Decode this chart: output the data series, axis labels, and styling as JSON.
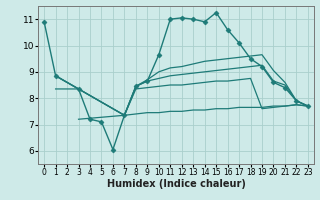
{
  "xlabel": "Humidex (Indice chaleur)",
  "bg_color": "#ceeae8",
  "grid_color": "#aacfcc",
  "line_color": "#1e7b78",
  "x_ticks": [
    0,
    1,
    2,
    3,
    4,
    5,
    6,
    7,
    8,
    9,
    10,
    11,
    12,
    13,
    14,
    15,
    16,
    17,
    18,
    19,
    20,
    21,
    22,
    23
  ],
  "ylim": [
    5.5,
    11.5
  ],
  "xlim": [
    -0.5,
    23.5
  ],
  "yticks": [
    6,
    7,
    8,
    9,
    10,
    11
  ],
  "series": [
    {
      "x": [
        0,
        1,
        3,
        4,
        5,
        6,
        7,
        8,
        9,
        10,
        11,
        12,
        13,
        14,
        15,
        16,
        17,
        18,
        19,
        20,
        21,
        22,
        23
      ],
      "y": [
        10.9,
        8.85,
        8.35,
        7.2,
        7.1,
        6.05,
        7.35,
        8.45,
        8.65,
        9.65,
        11.0,
        11.05,
        11.0,
        10.9,
        11.25,
        10.6,
        10.1,
        9.5,
        9.2,
        8.6,
        8.4,
        7.9,
        7.7
      ],
      "has_marker": true,
      "marker": "D",
      "markersize": 2.5,
      "linewidth": 1.0
    },
    {
      "x": [
        1,
        3,
        7,
        8,
        9,
        10,
        11,
        12,
        13,
        14,
        15,
        16,
        17,
        18,
        19,
        20,
        21,
        22,
        23
      ],
      "y": [
        8.85,
        8.35,
        7.35,
        8.45,
        8.7,
        9.0,
        9.15,
        9.2,
        9.3,
        9.4,
        9.45,
        9.5,
        9.55,
        9.6,
        9.65,
        9.05,
        8.6,
        7.9,
        7.7
      ],
      "has_marker": false,
      "linewidth": 0.9
    },
    {
      "x": [
        1,
        3,
        7,
        8,
        9,
        10,
        11,
        12,
        13,
        14,
        15,
        16,
        17,
        18,
        19,
        20,
        21,
        22,
        23
      ],
      "y": [
        8.85,
        8.35,
        7.35,
        8.45,
        8.65,
        8.75,
        8.85,
        8.9,
        8.95,
        9.0,
        9.05,
        9.1,
        9.15,
        9.2,
        9.25,
        8.65,
        8.5,
        7.9,
        7.7
      ],
      "has_marker": false,
      "linewidth": 0.9
    },
    {
      "x": [
        1,
        3,
        7,
        8,
        9,
        10,
        11,
        12,
        13,
        14,
        15,
        16,
        17,
        18,
        19,
        20,
        21,
        22,
        23
      ],
      "y": [
        8.35,
        8.35,
        7.35,
        8.35,
        8.4,
        8.45,
        8.5,
        8.5,
        8.55,
        8.6,
        8.65,
        8.65,
        8.7,
        8.75,
        7.6,
        7.65,
        7.7,
        7.75,
        7.7
      ],
      "has_marker": false,
      "linewidth": 0.9
    },
    {
      "x": [
        3,
        7,
        8,
        9,
        10,
        11,
        12,
        13,
        14,
        15,
        16,
        17,
        18,
        19,
        20,
        21,
        22,
        23
      ],
      "y": [
        7.2,
        7.35,
        7.4,
        7.45,
        7.45,
        7.5,
        7.5,
        7.55,
        7.55,
        7.6,
        7.6,
        7.65,
        7.65,
        7.65,
        7.7,
        7.7,
        7.75,
        7.7
      ],
      "has_marker": false,
      "linewidth": 0.9
    }
  ]
}
